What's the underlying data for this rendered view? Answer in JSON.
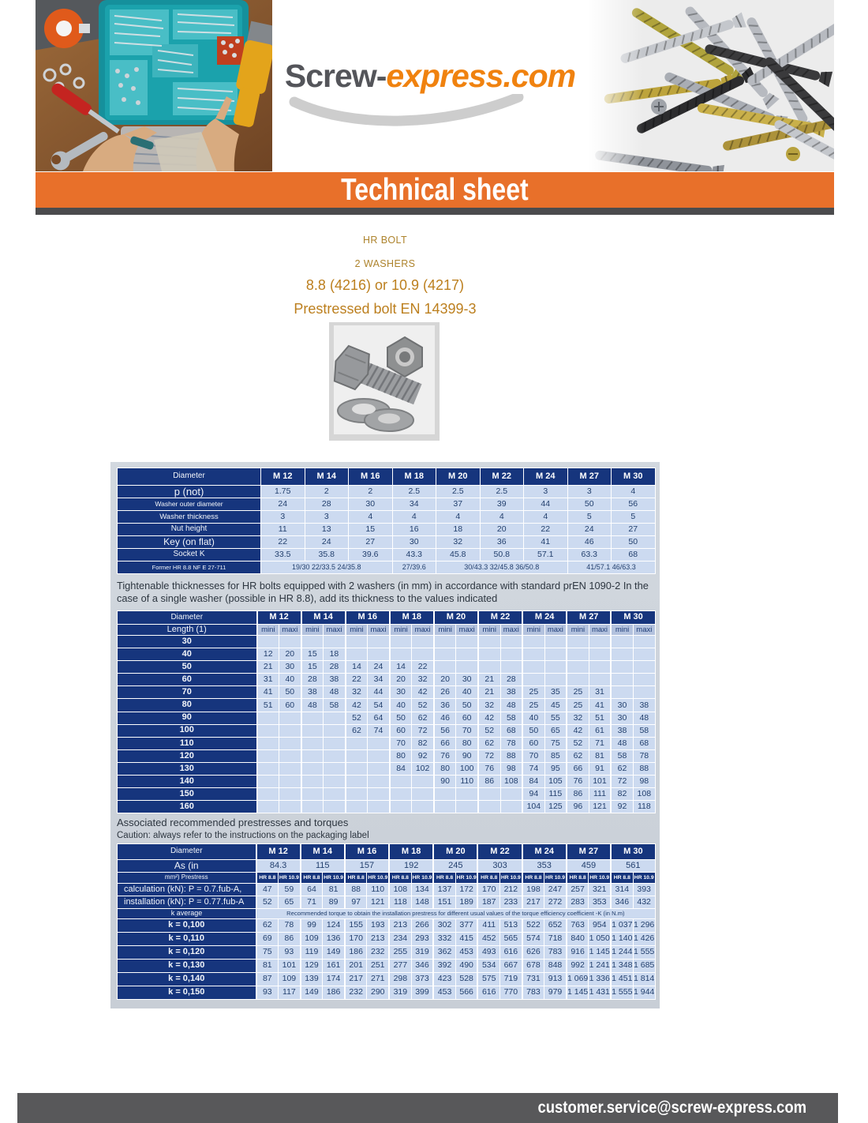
{
  "header": {
    "logo_part1": "Screw-",
    "logo_part2": "express.com",
    "banner_title": "Technical sheet"
  },
  "product": {
    "line1": "HR BOLT",
    "line2": "2 WASHERS",
    "line3": "8.8 (4216) or 10.9 (4217)",
    "line4": "Prestressed bolt EN 14399-3"
  },
  "notes": {
    "tightenable": "Tightenable thicknesses for HR bolts equipped with 2 washers (in mm) in accordance with standard prEN 1090-2 In the case of a single washer (possible in HR 8.8), add its thickness to the values indicated",
    "torques_title": "Associated recommended prestresses and torques",
    "torques_caution": "Caution: always refer to the instructions on the packaging label"
  },
  "diameters": [
    "M 12",
    "M 14",
    "M 16",
    "M 18",
    "M 20",
    "M 22",
    "M 24",
    "M 27",
    "M 30"
  ],
  "dim_table": {
    "corner": "Diameter",
    "rows": [
      {
        "label": "p (not)",
        "values": [
          "1.75",
          "2",
          "2",
          "2.5",
          "2.5",
          "2.5",
          "3",
          "3",
          "4"
        ]
      },
      {
        "label": "Washer outer diameter",
        "values": [
          "24",
          "28",
          "30",
          "34",
          "37",
          "39",
          "44",
          "50",
          "56"
        ]
      },
      {
        "label": "Washer thickness",
        "values": [
          "3",
          "3",
          "4",
          "4",
          "4",
          "4",
          "4",
          "5",
          "5"
        ]
      },
      {
        "label": "Nut height",
        "values": [
          "11",
          "13",
          "15",
          "16",
          "18",
          "20",
          "22",
          "24",
          "27"
        ]
      },
      {
        "label": "Key (on flat)",
        "values": [
          "22",
          "24",
          "27",
          "30",
          "32",
          "36",
          "41",
          "46",
          "50"
        ]
      },
      {
        "label": "Socket K",
        "values": [
          "33.5",
          "35.8",
          "39.6",
          "43.3",
          "45.8",
          "50.8",
          "57.1",
          "63.3",
          "68"
        ]
      }
    ],
    "former_row": {
      "label": "Former HR 8.8 NF E 27-711",
      "cells": [
        {
          "text": "19/30 22/33.5 24/35.8",
          "span": 3
        },
        {
          "text": "27/39.6",
          "span": 1
        },
        {
          "text": "30/43.3 32/45.8 36/50.8",
          "span": 3
        },
        {
          "text": "41/57.1 46/63.3",
          "span": 2
        }
      ]
    }
  },
  "length_table": {
    "corner_top": "Diameter",
    "corner_bottom": "Length (1)",
    "sub_headers": [
      "mini",
      "maxi"
    ],
    "rows": [
      {
        "length": "30",
        "values": [
          "",
          "",
          "",
          "",
          "",
          "",
          "",
          "",
          "",
          "",
          "",
          "",
          "",
          "",
          "",
          "",
          "",
          ""
        ]
      },
      {
        "length": "40",
        "values": [
          "12",
          "20",
          "15",
          "18",
          "",
          "",
          "",
          "",
          "",
          "",
          "",
          "",
          "",
          "",
          "",
          "",
          "",
          ""
        ]
      },
      {
        "length": "50",
        "values": [
          "21",
          "30",
          "15",
          "28",
          "14",
          "24",
          "14",
          "22",
          "",
          "",
          "",
          "",
          "",
          "",
          "",
          "",
          "",
          ""
        ]
      },
      {
        "length": "60",
        "values": [
          "31",
          "40",
          "28",
          "38",
          "22",
          "34",
          "20",
          "32",
          "20",
          "30",
          "21",
          "28",
          "",
          "",
          "",
          "",
          "",
          ""
        ]
      },
      {
        "length": "70",
        "values": [
          "41",
          "50",
          "38",
          "48",
          "32",
          "44",
          "30",
          "42",
          "26",
          "40",
          "21",
          "38",
          "25",
          "35",
          "25",
          "31",
          "",
          ""
        ]
      },
      {
        "length": "80",
        "values": [
          "51",
          "60",
          "48",
          "58",
          "42",
          "54",
          "40",
          "52",
          "36",
          "50",
          "32",
          "48",
          "25",
          "45",
          "25",
          "41",
          "30",
          "38"
        ]
      },
      {
        "length": "90",
        "values": [
          "",
          "",
          "",
          "",
          "52",
          "64",
          "50",
          "62",
          "46",
          "60",
          "42",
          "58",
          "40",
          "55",
          "32",
          "51",
          "30",
          "48"
        ]
      },
      {
        "length": "100",
        "values": [
          "",
          "",
          "",
          "",
          "62",
          "74",
          "60",
          "72",
          "56",
          "70",
          "52",
          "68",
          "50",
          "65",
          "42",
          "61",
          "38",
          "58"
        ]
      },
      {
        "length": "110",
        "values": [
          "",
          "",
          "",
          "",
          "",
          "",
          "70",
          "82",
          "66",
          "80",
          "62",
          "78",
          "60",
          "75",
          "52",
          "71",
          "48",
          "68"
        ]
      },
      {
        "length": "120",
        "values": [
          "",
          "",
          "",
          "",
          "",
          "",
          "80",
          "92",
          "76",
          "90",
          "72",
          "88",
          "70",
          "85",
          "62",
          "81",
          "58",
          "78"
        ]
      },
      {
        "length": "130",
        "values": [
          "",
          "",
          "",
          "",
          "",
          "",
          "84",
          "102",
          "80",
          "100",
          "76",
          "98",
          "74",
          "95",
          "66",
          "91",
          "62",
          "88"
        ]
      },
      {
        "length": "140",
        "values": [
          "",
          "",
          "",
          "",
          "",
          "",
          "",
          "",
          "90",
          "110",
          "86",
          "108",
          "84",
          "105",
          "76",
          "101",
          "72",
          "98"
        ]
      },
      {
        "length": "150",
        "values": [
          "",
          "",
          "",
          "",
          "",
          "",
          "",
          "",
          "",
          "",
          "",
          "",
          "94",
          "115",
          "86",
          "111",
          "82",
          "108"
        ]
      },
      {
        "length": "160",
        "values": [
          "",
          "",
          "",
          "",
          "",
          "",
          "",
          "",
          "",
          "",
          "",
          "",
          "104",
          "125",
          "96",
          "121",
          "92",
          "118"
        ]
      }
    ]
  },
  "torque_table": {
    "corner": "Diameter",
    "as_label": "As (in",
    "prestress_label": "mm²) Prestress",
    "as_values": [
      "84.3",
      "115",
      "157",
      "192",
      "245",
      "303",
      "353",
      "459",
      "561"
    ],
    "grade_headers": [
      "HR 8.8",
      "HR 10.9"
    ],
    "calc_label": "calculation (kN): P = 0.7.fub-A,",
    "calc_values": [
      "47",
      "59",
      "64",
      "81",
      "88",
      "110",
      "108",
      "134",
      "137",
      "172",
      "170",
      "212",
      "198",
      "247",
      "257",
      "321",
      "314",
      "393"
    ],
    "inst_label": "installation (kN): P = 0.77.fub-A",
    "inst_values": [
      "52",
      "65",
      "71",
      "89",
      "97",
      "121",
      "118",
      "148",
      "151",
      "189",
      "187",
      "233",
      "217",
      "272",
      "283",
      "353",
      "346",
      "432"
    ],
    "k_avg_label": "k average",
    "k_note": "Recommended torque to obtain the installation prestress for different usual values of the torque efficiency coefficient -K (in N.m)",
    "k_rows": [
      {
        "label": "k = 0,100",
        "values": [
          "62",
          "78",
          "99",
          "124",
          "155",
          "193",
          "213",
          "266",
          "302",
          "377",
          "411",
          "513",
          "522",
          "652",
          "763",
          "954",
          "1 037",
          "1 296"
        ]
      },
      {
        "label": "k = 0,110",
        "values": [
          "69",
          "86",
          "109",
          "136",
          "170",
          "213",
          "234",
          "293",
          "332",
          "415",
          "452",
          "565",
          "574",
          "718",
          "840",
          "1 050",
          "1 140",
          "1 426"
        ]
      },
      {
        "label": "k = 0,120",
        "values": [
          "75",
          "93",
          "119",
          "149",
          "186",
          "232",
          "255",
          "319",
          "362",
          "453",
          "493",
          "616",
          "626",
          "783",
          "916",
          "1 145",
          "1 244",
          "1 555"
        ]
      },
      {
        "label": "k = 0,130",
        "values": [
          "81",
          "101",
          "129",
          "161",
          "201",
          "251",
          "277",
          "346",
          "392",
          "490",
          "534",
          "667",
          "678",
          "848",
          "992",
          "1 241",
          "1 348",
          "1 685"
        ]
      },
      {
        "label": "k = 0,140",
        "values": [
          "87",
          "109",
          "139",
          "174",
          "217",
          "271",
          "298",
          "373",
          "423",
          "528",
          "575",
          "719",
          "731",
          "913",
          "1 069",
          "1 336",
          "1 451",
          "1 814"
        ]
      },
      {
        "label": "k = 0,150",
        "values": [
          "93",
          "117",
          "149",
          "186",
          "232",
          "290",
          "319",
          "399",
          "453",
          "566",
          "616",
          "770",
          "783",
          "979",
          "1 145",
          "1 431",
          "1 555",
          "1 944"
        ]
      }
    ]
  },
  "footer": {
    "email": "customer.service@screw-express.com"
  },
  "images": {
    "left_photo": "workbench-with-screw-organizer",
    "right_photo": "pile-of-screws",
    "product_photo": "hr-bolt-nut-two-washers"
  },
  "colors": {
    "banner_orange": "#e8702a",
    "table_navy": "#16357d",
    "table_cell_blue": "#ccdaf0",
    "gold_text": "#b5852d",
    "footer_gray": "#58585a",
    "logo_orange": "#f0820f",
    "logo_gray": "#54555a"
  }
}
